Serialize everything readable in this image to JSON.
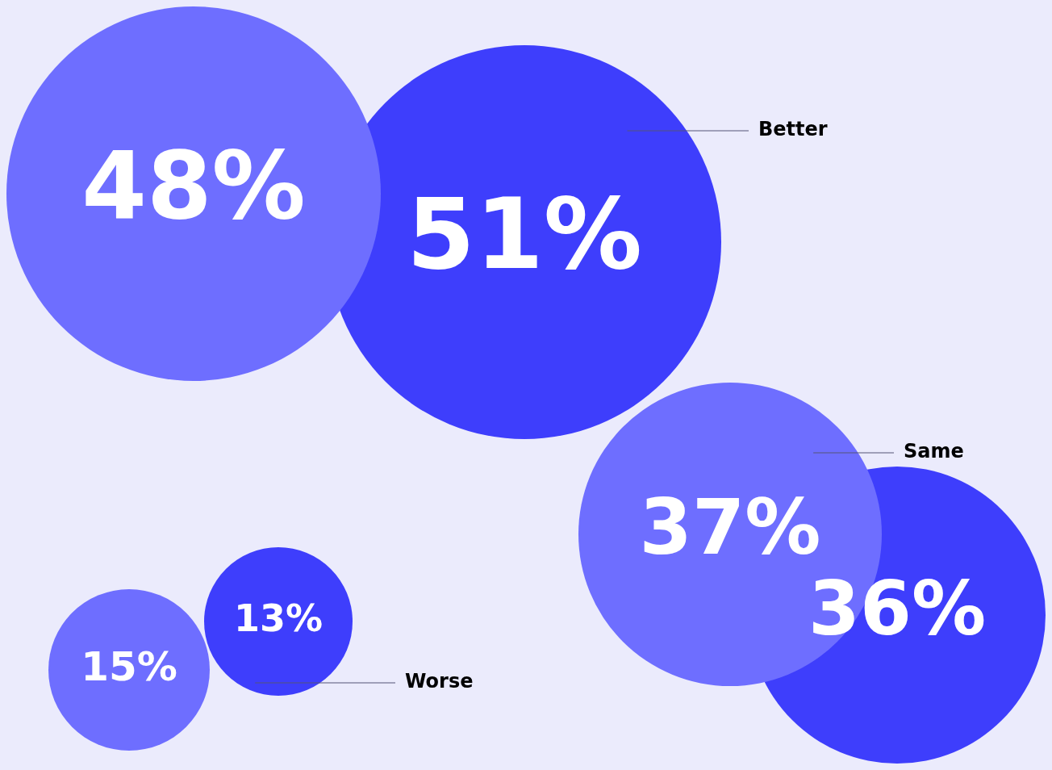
{
  "chart_data": {
    "type": "other",
    "categories": [
      "Better",
      "Same",
      "Worse"
    ],
    "series": [
      {
        "color": "#6e6eff",
        "values": [
          48,
          37,
          15
        ],
        "value_labels": [
          "48%",
          "37%",
          "15%"
        ]
      },
      {
        "color": "#3e3efc",
        "values": [
          51,
          36,
          13
        ],
        "value_labels": [
          "51%",
          "36%",
          "13%"
        ]
      }
    ]
  }
}
